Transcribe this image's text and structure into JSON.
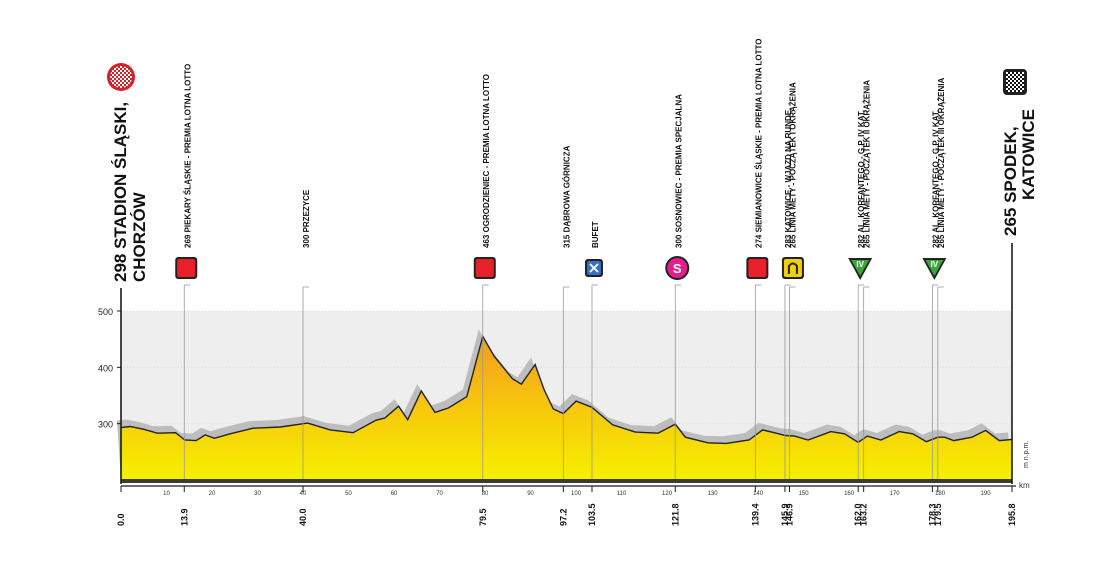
{
  "chart_data": {
    "type": "area",
    "xlabel": "km",
    "ylabel": "m n.p.m.",
    "xlim": [
      0,
      195.8
    ],
    "ylim": [
      200,
      500
    ],
    "yticks": [
      300,
      400,
      500
    ],
    "xticks": [
      10,
      20,
      30,
      40,
      50,
      60,
      70,
      80,
      90,
      100,
      110,
      120,
      130,
      140,
      150,
      160,
      170,
      180,
      190
    ],
    "start": {
      "label": "298 STADION ŚLĄSKI,",
      "label2": "CHORZÓW",
      "km": "0.0"
    },
    "finish": {
      "label": "265 SPODEK,",
      "label2": "KATOWICE",
      "km": "195.8"
    },
    "profile": [
      [
        0,
        293
      ],
      [
        2,
        295
      ],
      [
        5,
        290
      ],
      [
        8,
        283
      ],
      [
        12,
        284
      ],
      [
        14,
        271
      ],
      [
        16.5,
        270
      ],
      [
        18.5,
        280
      ],
      [
        20.5,
        274
      ],
      [
        24,
        282
      ],
      [
        29,
        292
      ],
      [
        35,
        294
      ],
      [
        41,
        301
      ],
      [
        46,
        289
      ],
      [
        51,
        284
      ],
      [
        56,
        306
      ],
      [
        58,
        310
      ],
      [
        61,
        331
      ],
      [
        63,
        307
      ],
      [
        66,
        358
      ],
      [
        69,
        320
      ],
      [
        72,
        328
      ],
      [
        76,
        348
      ],
      [
        79.5,
        455
      ],
      [
        82,
        420
      ],
      [
        86,
        380
      ],
      [
        88,
        370
      ],
      [
        91,
        405
      ],
      [
        93,
        360
      ],
      [
        95,
        326
      ],
      [
        97.2,
        318
      ],
      [
        100,
        340
      ],
      [
        103.5,
        329
      ],
      [
        108,
        298
      ],
      [
        113,
        285
      ],
      [
        118,
        283
      ],
      [
        121.8,
        299
      ],
      [
        124,
        276
      ],
      [
        129,
        266
      ],
      [
        133,
        265
      ],
      [
        138,
        271
      ],
      [
        141,
        289
      ],
      [
        144,
        283
      ],
      [
        146,
        279
      ],
      [
        148,
        278
      ],
      [
        151,
        271
      ],
      [
        156,
        286
      ],
      [
        159,
        282
      ],
      [
        162,
        267
      ],
      [
        164,
        278
      ],
      [
        167,
        271
      ],
      [
        171,
        286
      ],
      [
        174,
        282
      ],
      [
        177,
        268
      ],
      [
        179.5,
        276
      ],
      [
        181,
        276
      ],
      [
        183,
        270
      ],
      [
        187,
        276
      ],
      [
        190,
        288
      ],
      [
        193,
        270
      ],
      [
        195.8,
        272
      ]
    ],
    "markers": [
      {
        "km": 13.9,
        "label": "269 PIEKARY ŚLĄSKIE - PREMIA LOTNA LOTTO",
        "icon": "sprint-icon",
        "color": "#e8202a"
      },
      {
        "km": 40.0,
        "label": "300 PRZEZYCE",
        "icon": "",
        "color": ""
      },
      {
        "km": 79.5,
        "label": "463 OGRODZIENIEC - PREMIA LOTNA LOTTO",
        "icon": "sprint-icon",
        "color": "#e8202a"
      },
      {
        "km": 97.2,
        "label": "315 DĄBROWA GÓRNICZA",
        "icon": "",
        "color": ""
      },
      {
        "km": 103.5,
        "label": "BUFET",
        "icon": "feed-zone-icon",
        "color": "#3b6fc4"
      },
      {
        "km": 121.8,
        "label": "300 SOSNOWIEC - PREMIA SPECJALNA",
        "icon": "special-prize-icon",
        "color": "#e41e8a"
      },
      {
        "km": 139.4,
        "label": "274 SIEMIANOWICE ŚLĄSKIE - PREMIA LOTNA LOTTO",
        "icon": "sprint-icon",
        "color": "#e8202a"
      },
      {
        "km": 145.9,
        "label": "283 KATOWICE - WJAZD NA RUNDĘ",
        "icon": "circuit-entry-icon",
        "color": "#f0d000"
      },
      {
        "km": 146.9,
        "label": "265 LINIA METY - POCZĄTEK I OKRĄŻENIA",
        "icon": "",
        "color": ""
      },
      {
        "km": 162.0,
        "label": "282 AL. KORFANTEGO - G.P. IV KAT.",
        "icon": "mountain-iv-icon",
        "color": "#3aa53a"
      },
      {
        "km": 163.2,
        "label": "265 LINIA METY - POCZĄTEK II OKRĄŻENIA",
        "icon": "",
        "color": ""
      },
      {
        "km": 178.3,
        "label": "282 AL. KORFANTEGO - G.P. IV KAT.",
        "icon": "mountain-iv-icon",
        "color": "#3aa53a"
      },
      {
        "km": 179.5,
        "label": "265 LINIA METY - POCZĄTEK III OKRĄŻENIA",
        "icon": "",
        "color": ""
      }
    ],
    "bottom_km": [
      "0.0",
      "13.9",
      "40.0",
      "79.5",
      "97.2",
      "103.5",
      "121.8",
      "139.4",
      "145.9",
      "146.9",
      "162.0",
      "163.2",
      "178.3",
      "179.5",
      "195.8"
    ],
    "mountain_badge_text": "IV",
    "special_badge_text": "S",
    "colors": {
      "fill_top": "#f29a1f",
      "fill_mid": "#f7c40d",
      "fill_bottom": "#f5f000",
      "shadow": "#bdbdbd",
      "grid_band": "#eeeeee",
      "axis": "#1a1a1a"
    }
  }
}
